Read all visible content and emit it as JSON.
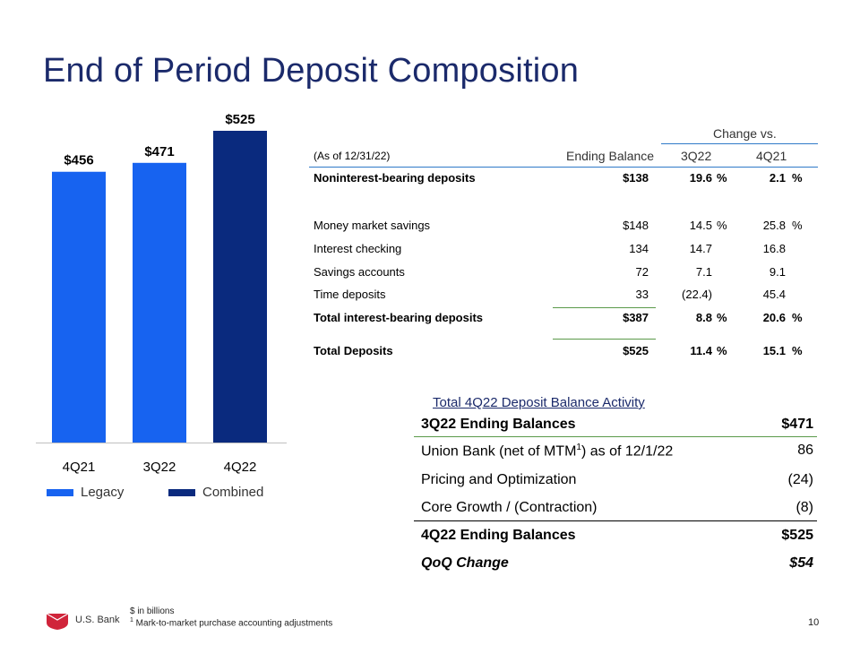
{
  "title": "End of Period Deposit Composition",
  "chart_data": {
    "type": "bar",
    "categories": [
      "4Q21",
      "3Q22",
      "4Q22"
    ],
    "values": [
      456,
      471,
      525
    ],
    "labels": [
      "$456",
      "$471",
      "$525"
    ],
    "series_type": [
      "Legacy",
      "Legacy",
      "Combined"
    ],
    "colors": {
      "Legacy": "#1763f0",
      "Combined": "#0a2a7e"
    },
    "ylim": [
      0,
      525
    ],
    "title": "",
    "xlabel": "",
    "ylabel": "",
    "legend": [
      "Legacy",
      "Combined"
    ]
  },
  "legend": {
    "legacy": "Legacy",
    "combined": "Combined"
  },
  "table": {
    "change_vs": "Change vs.",
    "as_of": "(As of 12/31/22)",
    "col_balance": "Ending Balance",
    "col_q3": "3Q22",
    "col_q4": "4Q21",
    "rows": [
      {
        "label": "Noninterest-bearing deposits",
        "balance": "$138",
        "q3": "19.6",
        "q3p": "%",
        "q4": "2.1",
        "q4p": "%"
      },
      {
        "label": "Money market savings",
        "balance": "$148",
        "q3": "14.5",
        "q3p": "%",
        "q4": "25.8",
        "q4p": "%"
      },
      {
        "label": "Interest checking",
        "balance": "134",
        "q3": "14.7",
        "q3p": "",
        "q4": "16.8",
        "q4p": ""
      },
      {
        "label": "Savings accounts",
        "balance": "72",
        "q3": "7.1",
        "q3p": "",
        "q4": "9.1",
        "q4p": ""
      },
      {
        "label": "Time deposits",
        "balance": "33",
        "q3": "(22.4)",
        "q3p": "",
        "q4": "45.4",
        "q4p": ""
      },
      {
        "label": "Total interest-bearing deposits",
        "balance": "$387",
        "q3": "8.8",
        "q3p": "%",
        "q4": "20.6",
        "q4p": "%"
      },
      {
        "label": "Total Deposits",
        "balance": "$525",
        "q3": "11.4",
        "q3p": "%",
        "q4": "15.1",
        "q4p": "%"
      }
    ]
  },
  "activity": {
    "title": "Total 4Q22 Deposit Balance Activity",
    "rows": [
      {
        "label": "3Q22 Ending Balances",
        "value": "$471"
      },
      {
        "label": "Union Bank (net of MTM",
        "sup": "1",
        "label_tail": ") as of 12/1/22",
        "value": "86"
      },
      {
        "label": "Pricing and Optimization",
        "value": "(24)"
      },
      {
        "label": "Core Growth / (Contraction)",
        "value": "(8)"
      },
      {
        "label": "4Q22 Ending Balances",
        "value": "$525"
      },
      {
        "label": "QoQ Change",
        "value": "$54"
      }
    ]
  },
  "footer": {
    "logo_text": "U.S. Bank",
    "note1": "$ in billions",
    "note2_sup": "1",
    "note2": " Mark-to-market purchase accounting adjustments",
    "page": "10"
  }
}
